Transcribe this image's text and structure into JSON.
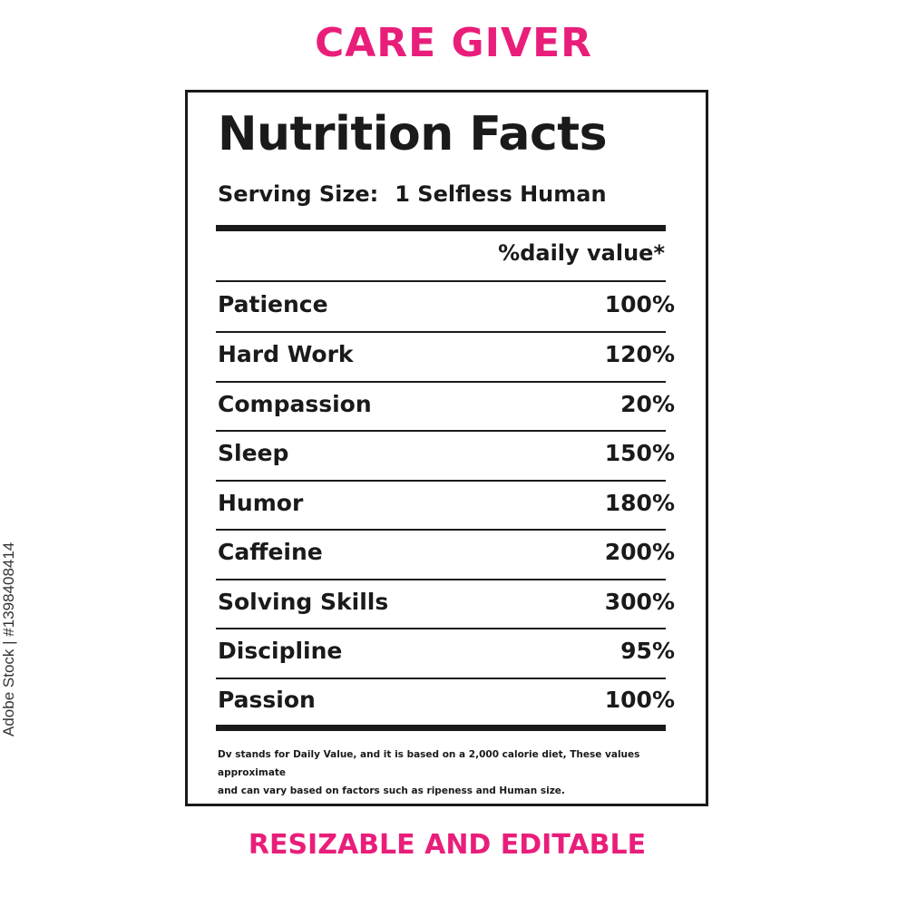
{
  "title_top": "CARE GIVER",
  "title_bottom": "RESIZABLE AND EDITABLE",
  "label": {
    "heading": "Nutrition Facts",
    "serving_label": "Serving Size:",
    "serving_value": "1 Selfless Human",
    "dv_header": "%daily value*",
    "rows": [
      {
        "name": "Patience",
        "value": "100%"
      },
      {
        "name": "Hard Work",
        "value": "120%"
      },
      {
        "name": "Compassion",
        "value": "20%"
      },
      {
        "name": "Sleep",
        "value": "150%"
      },
      {
        "name": "Humor",
        "value": "180%"
      },
      {
        "name": "Caffeine",
        "value": "200%"
      },
      {
        "name": "Solving Skills",
        "value": "300%"
      },
      {
        "name": "Discipline",
        "value": "95%"
      },
      {
        "name": "Passion",
        "value": "100%"
      }
    ],
    "footnote_line1": "Dv stands for Daily Value, and it is based on a 2,000 calorie diet, These values approximate",
    "footnote_line2": "and can vary based on factors such as ripeness and Human size."
  },
  "stock_id": "Adobe Stock | #1398408414",
  "colors": {
    "accent": "#e91e7a",
    "ink": "#1a1a1a"
  }
}
